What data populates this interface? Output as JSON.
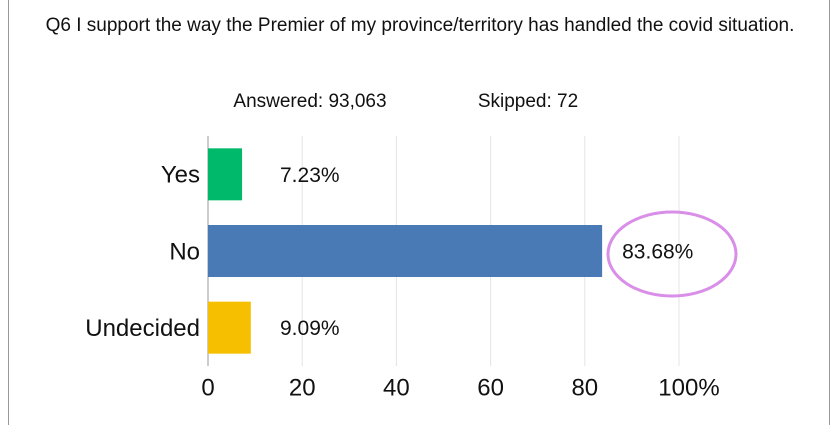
{
  "chart_data": {
    "type": "barh",
    "title": "Q6 I support the way the Premier of my province/territory has handled the covid situation.",
    "annotations": [
      "Answered:  93,063",
      "Skipped:  72"
    ],
    "categories": [
      "Yes",
      "No",
      "Undecided"
    ],
    "values": [
      7.23,
      83.68,
      9.09
    ],
    "value_labels": [
      "7.23%",
      "83.68%",
      "9.09%"
    ],
    "colors": [
      "#00b96b",
      "#4a7ab5",
      "#f6bf00"
    ],
    "xlim": [
      0,
      100
    ],
    "xticks": [
      0,
      20,
      40,
      60,
      80,
      {
        "value": 100,
        "label": "100%"
      }
    ],
    "grid": true
  }
}
